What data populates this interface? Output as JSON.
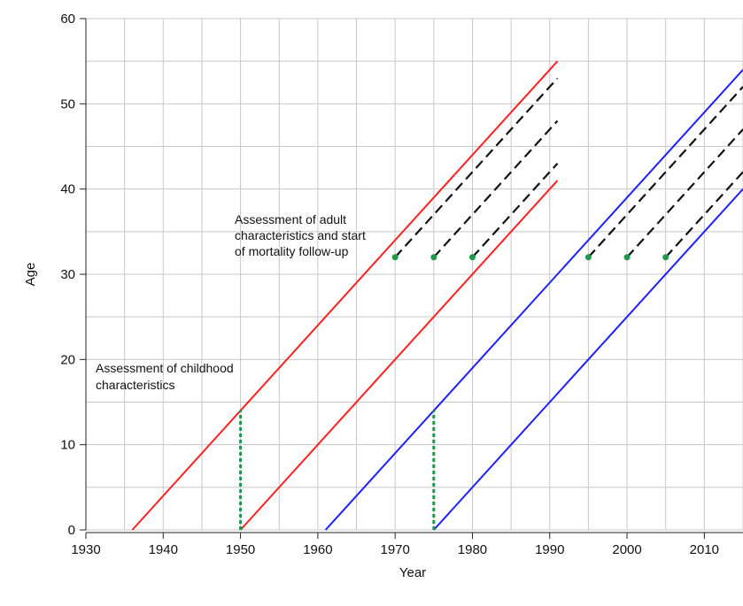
{
  "chart_data": {
    "type": "line",
    "title": "",
    "xlabel": "Year",
    "ylabel": "Age",
    "xlim": [
      1930,
      2015
    ],
    "ylim": [
      0,
      60
    ],
    "x_ticks": [
      "1930",
      "1940",
      "1950",
      "1960",
      "1970",
      "1980",
      "1990",
      "2000",
      "2010"
    ],
    "y_ticks": [
      "0",
      "10",
      "20",
      "30",
      "40",
      "50",
      "60"
    ],
    "grid": true,
    "lexis_lines": [
      {
        "color": "#ff2020",
        "style": "solid",
        "points": [
          [
            1936,
            0
          ],
          [
            1991,
            55
          ]
        ]
      },
      {
        "color": "#ff2020",
        "style": "solid",
        "points": [
          [
            1950,
            0
          ],
          [
            1991,
            41
          ]
        ]
      },
      {
        "color": "#1f1fff",
        "style": "solid",
        "points": [
          [
            1961,
            0
          ],
          [
            2015,
            54
          ]
        ]
      },
      {
        "color": "#1f1fff",
        "style": "solid",
        "points": [
          [
            1975,
            0
          ],
          [
            2015,
            40
          ]
        ]
      }
    ],
    "followup_lines": [
      {
        "color": "#111111",
        "style": "dashed",
        "points": [
          [
            1970,
            32
          ],
          [
            1991,
            53
          ]
        ]
      },
      {
        "color": "#111111",
        "style": "dashed",
        "points": [
          [
            1975,
            32
          ],
          [
            1991,
            48
          ]
        ]
      },
      {
        "color": "#111111",
        "style": "dashed",
        "points": [
          [
            1980,
            32
          ],
          [
            1991,
            43
          ]
        ]
      },
      {
        "color": "#111111",
        "style": "dashed",
        "points": [
          [
            1995,
            32
          ],
          [
            2015,
            52
          ]
        ]
      },
      {
        "color": "#111111",
        "style": "dashed",
        "points": [
          [
            2000,
            32
          ],
          [
            2015,
            47
          ]
        ]
      },
      {
        "color": "#111111",
        "style": "dashed",
        "points": [
          [
            2005,
            32
          ],
          [
            2015,
            42
          ]
        ]
      }
    ],
    "childhood_assessment_lines": [
      {
        "color": "#1a9a4a",
        "style": "dotted",
        "points": [
          [
            1950,
            0
          ],
          [
            1950,
            14
          ]
        ]
      },
      {
        "color": "#1a9a4a",
        "style": "dotted",
        "points": [
          [
            1975,
            0
          ],
          [
            1975,
            14
          ]
        ]
      }
    ],
    "adult_assessment_points": {
      "color": "#1a9a4a",
      "points": [
        [
          1970,
          32
        ],
        [
          1975,
          32
        ],
        [
          1980,
          32
        ],
        [
          1995,
          32
        ],
        [
          2000,
          32
        ],
        [
          2005,
          32
        ]
      ]
    },
    "annotations": [
      {
        "lines": [
          "Assessment of adult",
          "characteristics and start",
          "of mortality follow-up"
        ]
      },
      {
        "lines": [
          "Assessment of childhood",
          "characteristics"
        ]
      }
    ]
  }
}
